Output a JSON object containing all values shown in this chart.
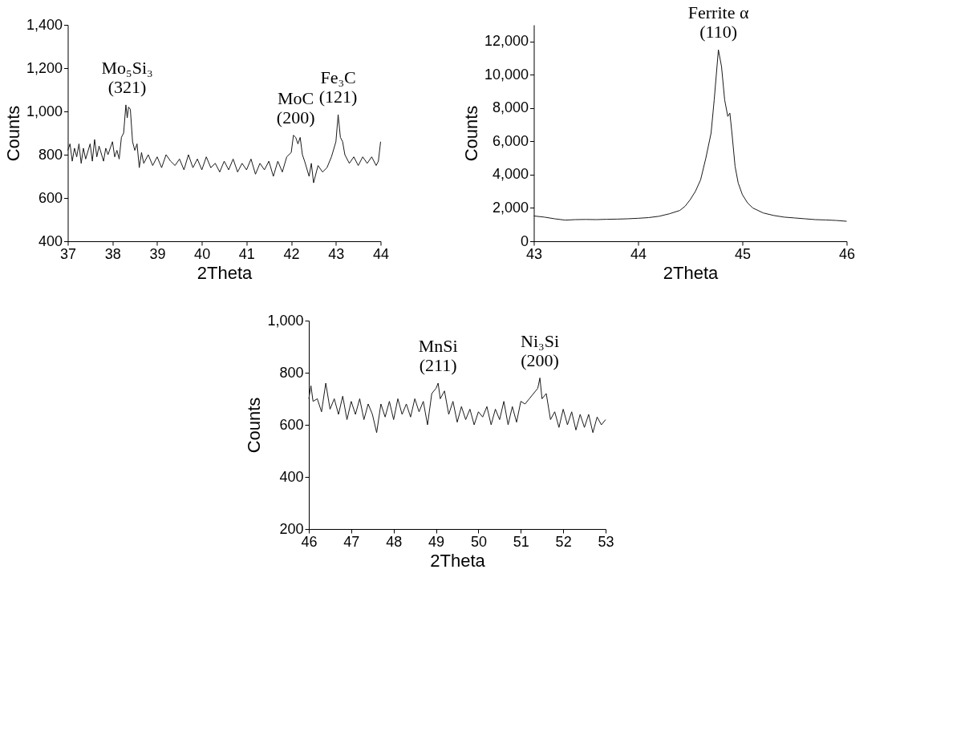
{
  "chart_data": [
    {
      "type": "line",
      "xlabel": "2Theta",
      "ylabel": "Counts",
      "xlim": [
        37,
        44
      ],
      "xticks": [
        37,
        38,
        39,
        40,
        41,
        42,
        43,
        44
      ],
      "ylim": [
        400,
        1400
      ],
      "yticks": [
        {
          "value": 400,
          "label": "400"
        },
        {
          "value": 600,
          "label": "600"
        },
        {
          "value": 800,
          "label": "800"
        },
        {
          "value": 1000,
          "label": "1,000"
        },
        {
          "value": 1200,
          "label": "1,200"
        },
        {
          "value": 1400,
          "label": "1,400"
        }
      ],
      "series": [
        {
          "color": "#1a1a1a",
          "x": [
            37.0,
            37.05,
            37.1,
            37.15,
            37.2,
            37.25,
            37.3,
            37.35,
            37.4,
            37.5,
            37.55,
            37.6,
            37.65,
            37.7,
            37.8,
            37.85,
            37.9,
            38.0,
            38.05,
            38.1,
            38.15,
            38.2,
            38.25,
            38.3,
            38.33,
            38.36,
            38.4,
            38.45,
            38.5,
            38.55,
            38.6,
            38.65,
            38.7,
            38.8,
            38.9,
            39.0,
            39.1,
            39.2,
            39.3,
            39.4,
            39.5,
            39.6,
            39.7,
            39.8,
            39.9,
            40.0,
            40.1,
            40.2,
            40.3,
            40.4,
            40.5,
            40.6,
            40.7,
            40.8,
            40.9,
            41.0,
            41.1,
            41.2,
            41.3,
            41.4,
            41.5,
            41.6,
            41.7,
            41.8,
            41.9,
            42.0,
            42.05,
            42.1,
            42.15,
            42.2,
            42.25,
            42.3,
            42.4,
            42.45,
            42.5,
            42.6,
            42.7,
            42.8,
            42.9,
            43.0,
            43.05,
            43.1,
            43.15,
            43.2,
            43.3,
            43.4,
            43.5,
            43.6,
            43.7,
            43.8,
            43.9,
            43.95,
            44.0
          ],
          "values": [
            820,
            850,
            770,
            830,
            790,
            850,
            760,
            830,
            780,
            850,
            770,
            870,
            790,
            840,
            770,
            830,
            800,
            860,
            790,
            820,
            780,
            880,
            900,
            1030,
            970,
            1020,
            1010,
            860,
            820,
            850,
            740,
            810,
            760,
            800,
            750,
            790,
            740,
            800,
            770,
            750,
            780,
            730,
            800,
            740,
            780,
            730,
            790,
            740,
            760,
            720,
            770,
            730,
            780,
            720,
            760,
            730,
            780,
            710,
            760,
            730,
            770,
            700,
            770,
            720,
            790,
            810,
            890,
            880,
            850,
            880,
            800,
            770,
            700,
            760,
            670,
            750,
            720,
            740,
            790,
            860,
            985,
            880,
            860,
            800,
            760,
            790,
            750,
            790,
            760,
            790,
            750,
            770,
            860
          ]
        }
      ],
      "annotations": [
        {
          "text": "Mo₅Si₃\n(321)",
          "x": 38.33,
          "y": 1030
        },
        {
          "text": "MoC\n(200)",
          "x": 42.1,
          "y": 890
        },
        {
          "text": "Fe₃C\n(121)",
          "x": 43.05,
          "y": 985
        }
      ]
    },
    {
      "type": "line",
      "xlabel": "2Theta",
      "ylabel": "Counts",
      "xlim": [
        43,
        46
      ],
      "xticks": [
        43,
        44,
        45,
        46
      ],
      "ylim": [
        0,
        13000
      ],
      "yticks": [
        {
          "value": 0,
          "label": "0"
        },
        {
          "value": 2000,
          "label": "2,000"
        },
        {
          "value": 4000,
          "label": "4,000"
        },
        {
          "value": 6000,
          "label": "6,000"
        },
        {
          "value": 8000,
          "label": "8,000"
        },
        {
          "value": 10000,
          "label": "10,000"
        },
        {
          "value": 12000,
          "label": "12,000"
        }
      ],
      "series": [
        {
          "color": "#1a1a1a",
          "x": [
            43.0,
            43.1,
            43.2,
            43.3,
            43.4,
            43.5,
            43.6,
            43.7,
            43.8,
            43.9,
            44.0,
            44.1,
            44.2,
            44.3,
            44.4,
            44.45,
            44.5,
            44.55,
            44.6,
            44.65,
            44.7,
            44.73,
            44.77,
            44.8,
            44.83,
            44.86,
            44.88,
            44.9,
            44.93,
            44.96,
            45.0,
            45.05,
            45.1,
            45.2,
            45.3,
            45.4,
            45.5,
            45.6,
            45.7,
            45.8,
            45.9,
            46.0
          ],
          "values": [
            1520,
            1450,
            1350,
            1270,
            1300,
            1310,
            1300,
            1320,
            1330,
            1350,
            1380,
            1420,
            1500,
            1650,
            1850,
            2100,
            2500,
            3000,
            3700,
            5000,
            6500,
            8500,
            11500,
            10500,
            8500,
            7500,
            7700,
            6500,
            4500,
            3500,
            2800,
            2300,
            2000,
            1700,
            1550,
            1450,
            1400,
            1350,
            1300,
            1280,
            1250,
            1200
          ]
        }
      ],
      "annotations": [
        {
          "text": "Ferrite α\n(110)",
          "x": 44.77,
          "y": 11500
        }
      ]
    },
    {
      "type": "line",
      "xlabel": "2Theta",
      "ylabel": "Counts",
      "xlim": [
        46,
        53
      ],
      "xticks": [
        46,
        47,
        48,
        49,
        50,
        51,
        52,
        53
      ],
      "ylim": [
        200,
        1000
      ],
      "yticks": [
        {
          "value": 200,
          "label": "200"
        },
        {
          "value": 400,
          "label": "400"
        },
        {
          "value": 600,
          "label": "600"
        },
        {
          "value": 800,
          "label": "800"
        },
        {
          "value": 1000,
          "label": "1,000"
        }
      ],
      "series": [
        {
          "color": "#1a1a1a",
          "x": [
            46.0,
            46.05,
            46.1,
            46.2,
            46.3,
            46.4,
            46.5,
            46.6,
            46.7,
            46.8,
            46.9,
            47.0,
            47.1,
            47.2,
            47.3,
            47.4,
            47.5,
            47.6,
            47.7,
            47.8,
            47.9,
            48.0,
            48.1,
            48.2,
            48.3,
            48.4,
            48.5,
            48.6,
            48.7,
            48.8,
            48.9,
            49.0,
            49.05,
            49.1,
            49.2,
            49.3,
            49.4,
            49.5,
            49.6,
            49.7,
            49.8,
            49.9,
            50.0,
            50.1,
            50.2,
            50.3,
            50.4,
            50.5,
            50.6,
            50.7,
            50.8,
            50.9,
            51.0,
            51.1,
            51.2,
            51.3,
            51.4,
            51.45,
            51.5,
            51.6,
            51.7,
            51.8,
            51.9,
            52.0,
            52.1,
            52.2,
            52.3,
            52.4,
            52.5,
            52.6,
            52.7,
            52.8,
            52.9,
            53.0
          ],
          "values": [
            700,
            750,
            690,
            700,
            650,
            760,
            660,
            700,
            640,
            710,
            620,
            690,
            640,
            700,
            620,
            680,
            640,
            570,
            680,
            630,
            690,
            620,
            700,
            640,
            680,
            630,
            700,
            650,
            690,
            600,
            720,
            740,
            760,
            700,
            730,
            640,
            690,
            610,
            670,
            620,
            660,
            600,
            650,
            630,
            670,
            600,
            660,
            620,
            690,
            600,
            670,
            610,
            690,
            680,
            700,
            720,
            740,
            780,
            700,
            720,
            620,
            650,
            590,
            660,
            600,
            650,
            580,
            640,
            590,
            640,
            570,
            630,
            600,
            620
          ]
        }
      ],
      "annotations": [
        {
          "text": "MnSi\n(211)",
          "x": 49.05,
          "y": 760
        },
        {
          "text": "Ni₃Si\n(200)",
          "x": 51.45,
          "y": 780
        }
      ]
    }
  ]
}
